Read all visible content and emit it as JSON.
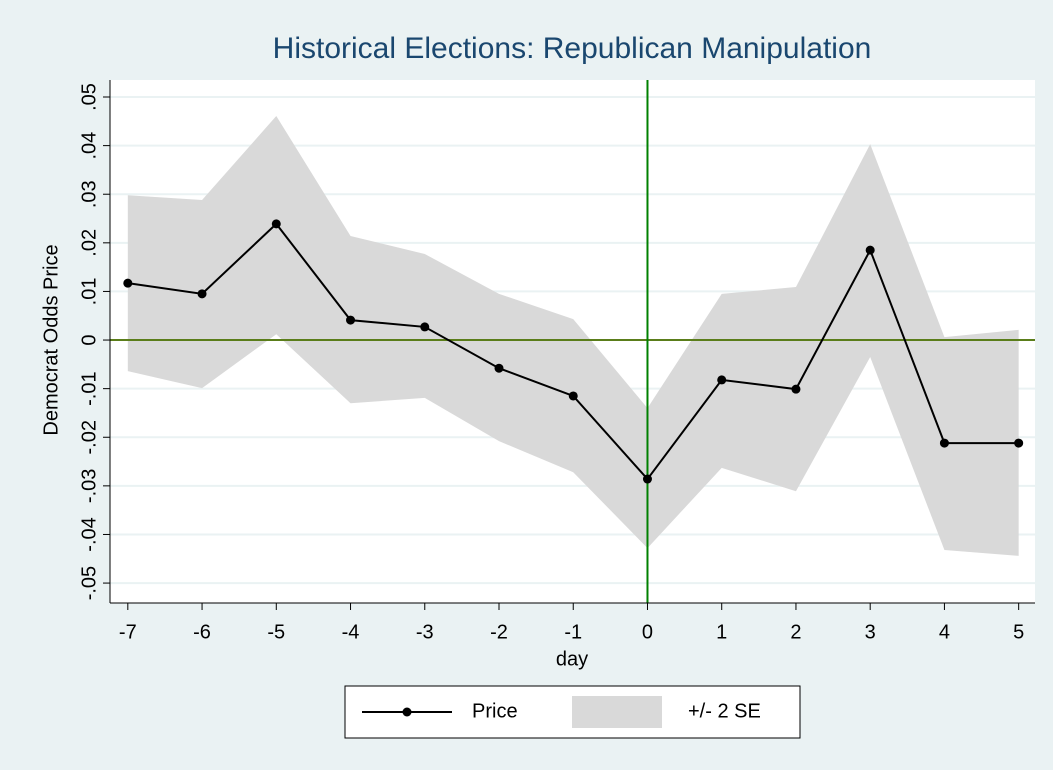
{
  "chart_data": {
    "type": "line",
    "title": "Historical Elections: Republican Manipulation",
    "x_label": "day",
    "y_label": "Democrat Odds Price",
    "x": [
      -7,
      -6,
      -5,
      -4,
      -3,
      -2,
      -1,
      0,
      1,
      2,
      3,
      4,
      5
    ],
    "series": [
      {
        "name": "Price",
        "color": "#000000",
        "values": [
          0.0117,
          0.0095,
          0.0239,
          0.0041,
          0.0027,
          -0.0058,
          -0.0115,
          -0.0286,
          -0.0082,
          -0.0101,
          0.0185,
          -0.0212,
          -0.0212
        ]
      }
    ],
    "band": {
      "name": "+/- 2 SE",
      "color": "#d9d9d9",
      "upper": [
        0.0298,
        0.0288,
        0.0461,
        0.0214,
        0.0177,
        0.0095,
        0.0043,
        -0.014,
        0.0095,
        0.0109,
        0.0403,
        0.0006,
        0.0021
      ],
      "lower": [
        -0.0064,
        -0.0099,
        0.0012,
        -0.013,
        -0.0119,
        -0.0208,
        -0.0272,
        -0.0428,
        -0.0263,
        -0.0311,
        -0.0035,
        -0.0432,
        -0.0444
      ]
    },
    "xline": {
      "value": 0,
      "color": "#008000"
    },
    "yline": {
      "value": 0,
      "color": "#5a7d1a"
    },
    "xlim": [
      -7.24,
      5.22
    ],
    "xticks": [
      -7,
      -6,
      -5,
      -4,
      -3,
      -2,
      -1,
      0,
      1,
      2,
      3,
      4,
      5
    ],
    "ylim": [
      -0.0541,
      0.0535
    ],
    "yticks": [
      {
        "value": -0.05,
        "label": "-.05"
      },
      {
        "value": -0.04,
        "label": "-.04"
      },
      {
        "value": -0.03,
        "label": "-.03"
      },
      {
        "value": -0.02,
        "label": "-.02"
      },
      {
        "value": -0.01,
        "label": "-.01"
      },
      0,
      {
        "value": 0.01,
        "label": ".01"
      },
      {
        "value": 0.02,
        "label": ".02"
      },
      {
        "value": 0.03,
        "label": ".03"
      },
      {
        "value": 0.04,
        "label": ".04"
      },
      {
        "value": 0.05,
        "label": ".05"
      }
    ],
    "grid": true,
    "legend": "bottom"
  }
}
